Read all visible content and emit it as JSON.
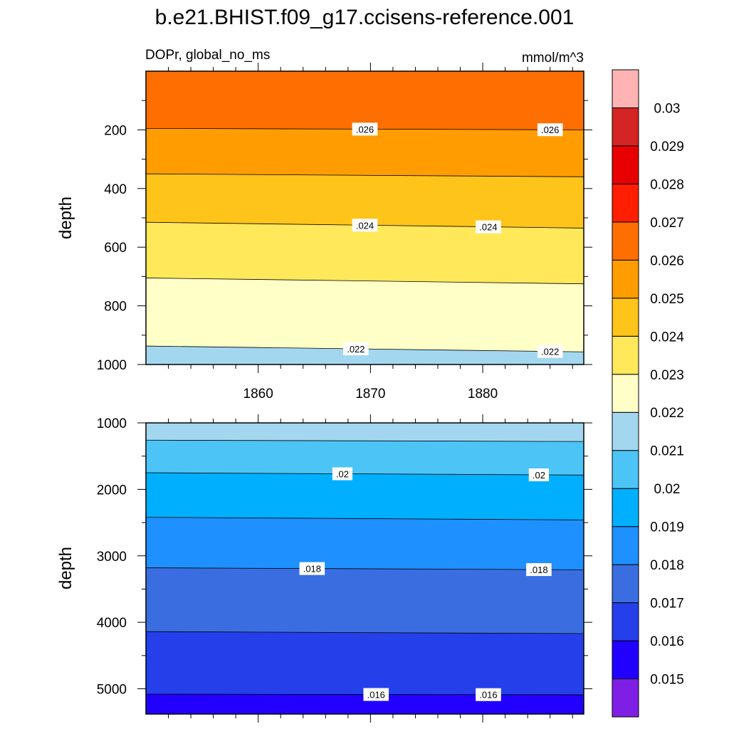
{
  "chart_data": {
    "title": "b.e21.BHIST.f09_g17.ccisens-reference.001",
    "left_subtitle": "DOPr, global_no_ms",
    "units": "mmol/m^3",
    "colorbar": {
      "levels": [
        "0.015",
        "0.016",
        "0.017",
        "0.018",
        "0.019",
        "0.02",
        "0.021",
        "0.022",
        "0.023",
        "0.024",
        "0.025",
        "0.026",
        "0.027",
        "0.028",
        "0.029",
        "0.03"
      ],
      "colors": [
        "#7f1fe6",
        "#2200ff",
        "#2540eb",
        "#3a6ee0",
        "#1e90ff",
        "#00b0ff",
        "#4cc4f5",
        "#a3d7f0",
        "#ffffc8",
        "#ffe85a",
        "#ffc41a",
        "#ff9d00",
        "#ff6e00",
        "#ff1f00",
        "#e80000",
        "#d42424",
        "#ffb3b3"
      ]
    },
    "panels": [
      {
        "name": "upper",
        "type": "filled-contour",
        "xlabel": "",
        "ylabel": "depth",
        "xlim": [
          1850,
          1889
        ],
        "ylim": [
          1000,
          0
        ],
        "x_ticks": [
          1860,
          1870,
          1880
        ],
        "x_tick_labels": [
          "1860",
          "1870",
          "1880"
        ],
        "y_ticks": [
          200,
          400,
          600,
          800,
          1000
        ],
        "y_tick_labels": [
          "200",
          "400",
          "600",
          "800",
          "1000"
        ],
        "bands": [
          {
            "level_value": 0.026,
            "color": "#ff6e00"
          },
          {
            "level_value": 0.025,
            "color": "#ff9d00"
          },
          {
            "level_value": 0.024,
            "color": "#ffc41a"
          },
          {
            "level_value": 0.023,
            "color": "#ffe85a"
          },
          {
            "level_value": 0.022,
            "color": "#ffffc8"
          },
          {
            "level_value": 0.021,
            "color": "#a3d7f0"
          }
        ],
        "contours": [
          {
            "level": 0.026,
            "depth_start": 195,
            "depth_end": 200,
            "labels": [
              {
                "text": ".026",
                "x": 1869.5
              },
              {
                "text": ".026",
                "x": 1886
              }
            ]
          },
          {
            "level": 0.025,
            "depth_start": 350,
            "depth_end": 360,
            "labels": []
          },
          {
            "level": 0.024,
            "depth_start": 515,
            "depth_end": 535,
            "labels": [
              {
                "text": ".024",
                "x": 1869.5
              },
              {
                "text": ".024",
                "x": 1880.5
              }
            ]
          },
          {
            "level": 0.023,
            "depth_start": 705,
            "depth_end": 725,
            "labels": []
          },
          {
            "level": 0.022,
            "depth_start": 937,
            "depth_end": 957,
            "labels": [
              {
                "text": ".022",
                "x": 1868.7
              },
              {
                "text": ".022",
                "x": 1886
              }
            ]
          }
        ]
      },
      {
        "name": "lower",
        "type": "filled-contour",
        "xlabel": "",
        "ylabel": "depth",
        "xlim": [
          1850,
          1889
        ],
        "ylim": [
          5380,
          1000
        ],
        "x_ticks": [
          1860,
          1870,
          1880
        ],
        "x_tick_labels": [
          "",
          "",
          ""
        ],
        "y_ticks": [
          1000,
          2000,
          3000,
          4000,
          5000
        ],
        "y_tick_labels": [
          "1000",
          "2000",
          "3000",
          "4000",
          "5000"
        ],
        "bands": [
          {
            "level_value": 0.021,
            "color": "#a3d7f0"
          },
          {
            "level_value": 0.02,
            "color": "#4cc4f5"
          },
          {
            "level_value": 0.019,
            "color": "#00b0ff"
          },
          {
            "level_value": 0.018,
            "color": "#1e90ff"
          },
          {
            "level_value": 0.017,
            "color": "#3a6ee0"
          },
          {
            "level_value": 0.016,
            "color": "#2540eb"
          },
          {
            "level_value": 0.015,
            "color": "#2200ff"
          }
        ],
        "contours": [
          {
            "level": 0.021,
            "depth_start": 1260,
            "depth_end": 1280,
            "labels": []
          },
          {
            "level": 0.02,
            "depth_start": 1750,
            "depth_end": 1785,
            "labels": [
              {
                "text": ".02",
                "x": 1867.5
              },
              {
                "text": ".02",
                "x": 1885
              }
            ]
          },
          {
            "level": 0.019,
            "depth_start": 2420,
            "depth_end": 2460,
            "labels": []
          },
          {
            "level": 0.018,
            "depth_start": 3180,
            "depth_end": 3210,
            "labels": [
              {
                "text": ".018",
                "x": 1864.8
              },
              {
                "text": ".018",
                "x": 1885
              }
            ]
          },
          {
            "level": 0.017,
            "depth_start": 4140,
            "depth_end": 4170,
            "labels": []
          },
          {
            "level": 0.016,
            "depth_start": 5080,
            "depth_end": 5090,
            "labels": [
              {
                "text": ".016",
                "x": 1870.5
              },
              {
                "text": ".016",
                "x": 1880.5
              }
            ]
          }
        ]
      }
    ]
  }
}
